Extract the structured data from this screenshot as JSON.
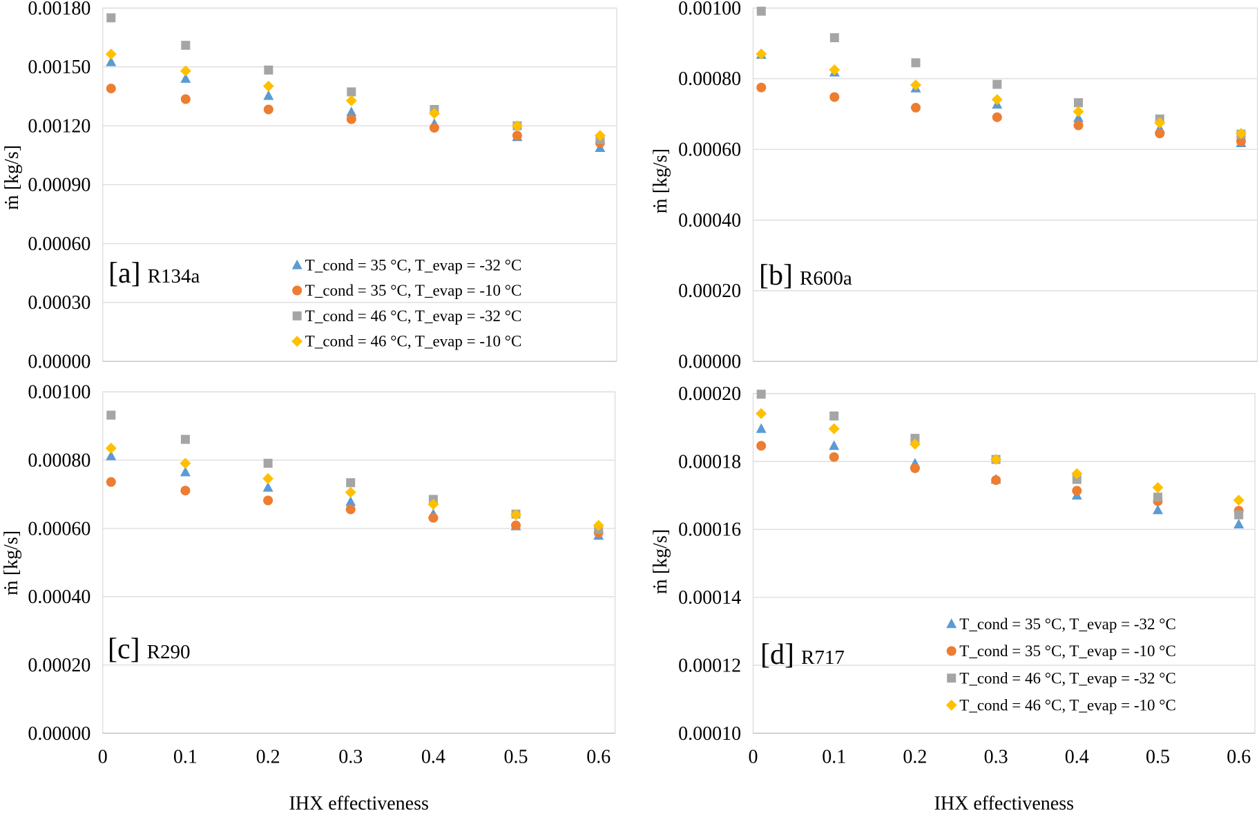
{
  "chart_data": [
    {
      "type": "scatter",
      "panel_label": "[a]",
      "refrigerant": "R134a",
      "ylabel": "ṁ [kg/s]",
      "xlim": [
        0,
        0.62
      ],
      "ylim": [
        0,
        0.0018
      ],
      "yticks": [
        0,
        0.0003,
        0.0006,
        0.0009,
        0.0012,
        0.0015,
        0.0018
      ],
      "ytick_labels": [
        "0.00000",
        "0.00030",
        "0.00060",
        "0.00090",
        "0.00120",
        "0.00150",
        "0.00180"
      ],
      "grid": "horizontal",
      "legend": "bottom-right",
      "x": [
        0.01,
        0.1,
        0.2,
        0.3,
        0.4,
        0.5,
        0.6
      ],
      "series": [
        {
          "name": "T_cond = 35 °C, T_evap = -32 °C",
          "marker": "triangle",
          "color": "#5B9BD5",
          "values": [
            0.001525,
            0.00144,
            0.001353,
            0.00127,
            0.00121,
            0.001143,
            0.001088
          ]
        },
        {
          "name": "T_cond = 35 °C, T_evap = -10 °C",
          "marker": "circle",
          "color": "#ED7D31",
          "values": [
            0.00139,
            0.001336,
            0.001283,
            0.001234,
            0.00119,
            0.00115,
            0.001113
          ]
        },
        {
          "name": "T_cond = 46 °C, T_evap = -32 °C",
          "marker": "square",
          "color": "#A5A5A5",
          "values": [
            0.00175,
            0.00161,
            0.001484,
            0.001373,
            0.001283,
            0.0012,
            0.00113
          ]
        },
        {
          "name": "T_cond = 46 °C, T_evap = -10 °C",
          "marker": "diamond",
          "color": "#FFC000",
          "values": [
            0.001565,
            0.00148,
            0.001402,
            0.001328,
            0.001263,
            0.0012,
            0.00115
          ]
        }
      ]
    },
    {
      "type": "scatter",
      "panel_label": "[b]",
      "refrigerant": "R600a",
      "ylabel": "ṁ [kg/s]",
      "xlim": [
        0,
        0.62
      ],
      "ylim": [
        0,
        0.001
      ],
      "yticks": [
        0,
        0.0002,
        0.0004,
        0.0006,
        0.0008,
        0.001
      ],
      "ytick_labels": [
        "0.00000",
        "0.00020",
        "0.00040",
        "0.00060",
        "0.00080",
        "0.00100"
      ],
      "grid": "horizontal",
      "legend": "none",
      "x": [
        0.01,
        0.1,
        0.2,
        0.3,
        0.4,
        0.5,
        0.6
      ],
      "series": [
        {
          "marker": "triangle",
          "color": "#5B9BD5",
          "values": [
            0.000868,
            0.000818,
            0.000773,
            0.000727,
            0.000689,
            0.000659,
            0.000618
          ]
        },
        {
          "marker": "circle",
          "color": "#ED7D31",
          "values": [
            0.000775,
            0.000748,
            0.000718,
            0.000691,
            0.000668,
            0.000645,
            0.000623
          ]
        },
        {
          "marker": "square",
          "color": "#A5A5A5",
          "values": [
            0.000991,
            0.000916,
            0.000845,
            0.000784,
            0.000732,
            0.000686,
            0.000643
          ]
        },
        {
          "marker": "diamond",
          "color": "#FFC000",
          "values": [
            0.00087,
            0.000825,
            0.000782,
            0.000741,
            0.000707,
            0.000675,
            0.000645
          ]
        }
      ]
    },
    {
      "type": "scatter",
      "panel_label": "[c]",
      "refrigerant": "R290",
      "xlabel": "IHX effectiveness",
      "ylabel": "ṁ [kg/s]",
      "xlim": [
        0,
        0.62
      ],
      "ylim": [
        0,
        0.001
      ],
      "xticks": [
        0,
        0.1,
        0.2,
        0.3,
        0.4,
        0.5,
        0.6
      ],
      "xtick_labels": [
        "0",
        "0.1",
        "0.2",
        "0.3",
        "0.4",
        "0.5",
        "0.6"
      ],
      "yticks": [
        0,
        0.0002,
        0.0004,
        0.0006,
        0.0008,
        0.001
      ],
      "ytick_labels": [
        "0.00000",
        "0.00020",
        "0.00040",
        "0.00060",
        "0.00080",
        "0.00100"
      ],
      "grid": "horizontal",
      "legend": "none",
      "x": [
        0.01,
        0.1,
        0.2,
        0.3,
        0.4,
        0.5,
        0.6
      ],
      "series": [
        {
          "marker": "triangle",
          "color": "#5B9BD5",
          "values": [
            0.000812,
            0.000765,
            0.00072,
            0.000678,
            0.000642,
            0.000607,
            0.000579
          ]
        },
        {
          "marker": "circle",
          "color": "#ED7D31",
          "values": [
            0.000736,
            0.000711,
            0.000682,
            0.000656,
            0.000631,
            0.000609,
            0.000588
          ]
        },
        {
          "marker": "square",
          "color": "#A5A5A5",
          "values": [
            0.000932,
            0.000861,
            0.000791,
            0.000734,
            0.000685,
            0.000642,
            0.000598
          ]
        },
        {
          "marker": "diamond",
          "color": "#FFC000",
          "values": [
            0.000835,
            0.000791,
            0.000746,
            0.000706,
            0.000671,
            0.00064,
            0.000609
          ]
        }
      ]
    },
    {
      "type": "scatter",
      "panel_label": "[d]",
      "refrigerant": "R717",
      "xlabel": "IHX effectiveness",
      "ylabel": "ṁ [kg/s]",
      "xlim": [
        0,
        0.62
      ],
      "ylim": [
        0.0001,
        0.0002
      ],
      "xticks": [
        0,
        0.1,
        0.2,
        0.3,
        0.4,
        0.5,
        0.6
      ],
      "xtick_labels": [
        "0",
        "0.1",
        "0.2",
        "0.3",
        "0.4",
        "0.5",
        "0.6"
      ],
      "yticks": [
        0.0001,
        0.00012,
        0.00014,
        0.00016,
        0.00018,
        0.0002
      ],
      "ytick_labels": [
        "0.00010",
        "0.00012",
        "0.00014",
        "0.00016",
        "0.00018",
        "0.00020"
      ],
      "grid": "horizontal",
      "legend": "bottom-right",
      "x": [
        0.01,
        0.1,
        0.2,
        0.3,
        0.4,
        0.5,
        0.6
      ],
      "series": [
        {
          "name": "T_cond = 35 °C, T_evap = -32 °C",
          "marker": "triangle",
          "color": "#5B9BD5",
          "values": [
            0.0001896,
            0.0001846,
            0.0001794,
            0.0001747,
            0.00017,
            0.0001657,
            0.0001615
          ]
        },
        {
          "name": "T_cond = 35 °C, T_evap = -10 °C",
          "marker": "circle",
          "color": "#ED7D31",
          "values": [
            0.0001846,
            0.0001813,
            0.000178,
            0.0001745,
            0.0001714,
            0.0001683,
            0.0001655
          ]
        },
        {
          "name": "T_cond = 46 °C, T_evap = -32 °C",
          "marker": "square",
          "color": "#A5A5A5",
          "values": [
            0.0001998,
            0.0001934,
            0.0001868,
            0.0001806,
            0.0001747,
            0.0001695,
            0.0001643
          ]
        },
        {
          "name": "T_cond = 46 °C, T_evap = -10 °C",
          "marker": "diamond",
          "color": "#FFC000",
          "values": [
            0.0001941,
            0.0001896,
            0.0001851,
            0.0001806,
            0.0001764,
            0.0001723,
            0.0001686
          ]
        }
      ]
    }
  ]
}
